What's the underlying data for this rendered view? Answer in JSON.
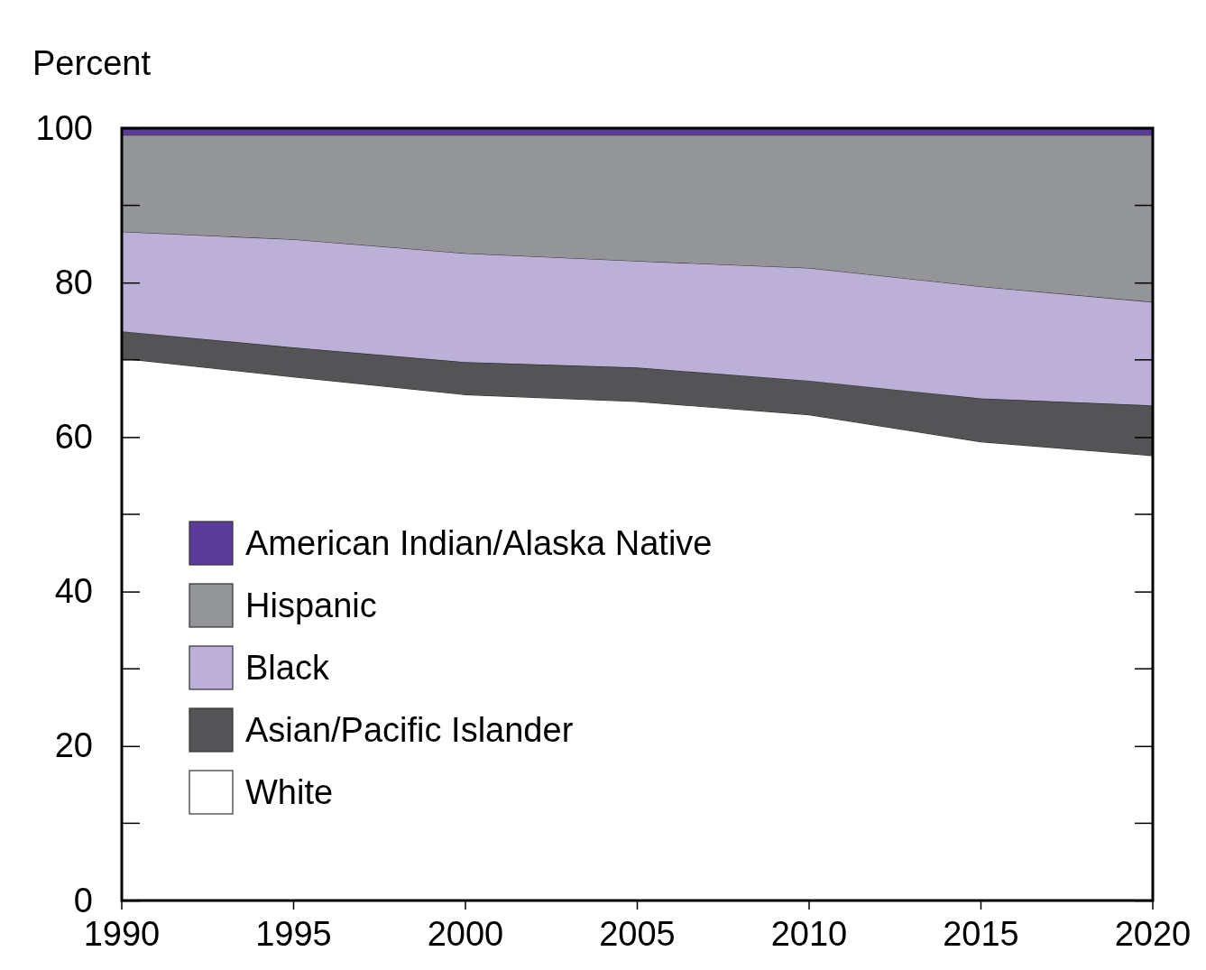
{
  "chart_data": {
    "type": "area",
    "stacked": true,
    "ylabel": "Percent",
    "x": [
      1990,
      1995,
      2000,
      2005,
      2010,
      2015,
      2020
    ],
    "xlim": [
      1990,
      2020
    ],
    "xticks": [
      1990,
      1995,
      2000,
      2005,
      2010,
      2015,
      2020
    ],
    "ylim": [
      0,
      100
    ],
    "yticks": [
      0,
      20,
      40,
      60,
      80,
      100
    ],
    "legend": "bottom left",
    "grid": false,
    "series": [
      {
        "name": "White",
        "color": "#ffffff",
        "values": [
          70.2,
          67.8,
          65.5,
          64.6,
          62.9,
          59.4,
          57.6
        ]
      },
      {
        "name": "Asian/Pacific Islander",
        "color": "#545456",
        "values": [
          3.5,
          3.8,
          4.2,
          4.4,
          4.4,
          5.6,
          6.5
        ]
      },
      {
        "name": "Black",
        "color": "#bcb0d8",
        "values": [
          12.9,
          14.0,
          14.1,
          13.8,
          14.6,
          14.5,
          13.4
        ]
      },
      {
        "name": "Hispanic",
        "color": "#939598",
        "values": [
          12.5,
          13.5,
          15.3,
          16.3,
          17.2,
          19.6,
          21.6
        ]
      },
      {
        "name": "American Indian/Alaska Native",
        "color": "#5b3c9a",
        "values": [
          0.9,
          0.9,
          0.9,
          0.9,
          0.9,
          0.9,
          0.9
        ]
      }
    ]
  }
}
